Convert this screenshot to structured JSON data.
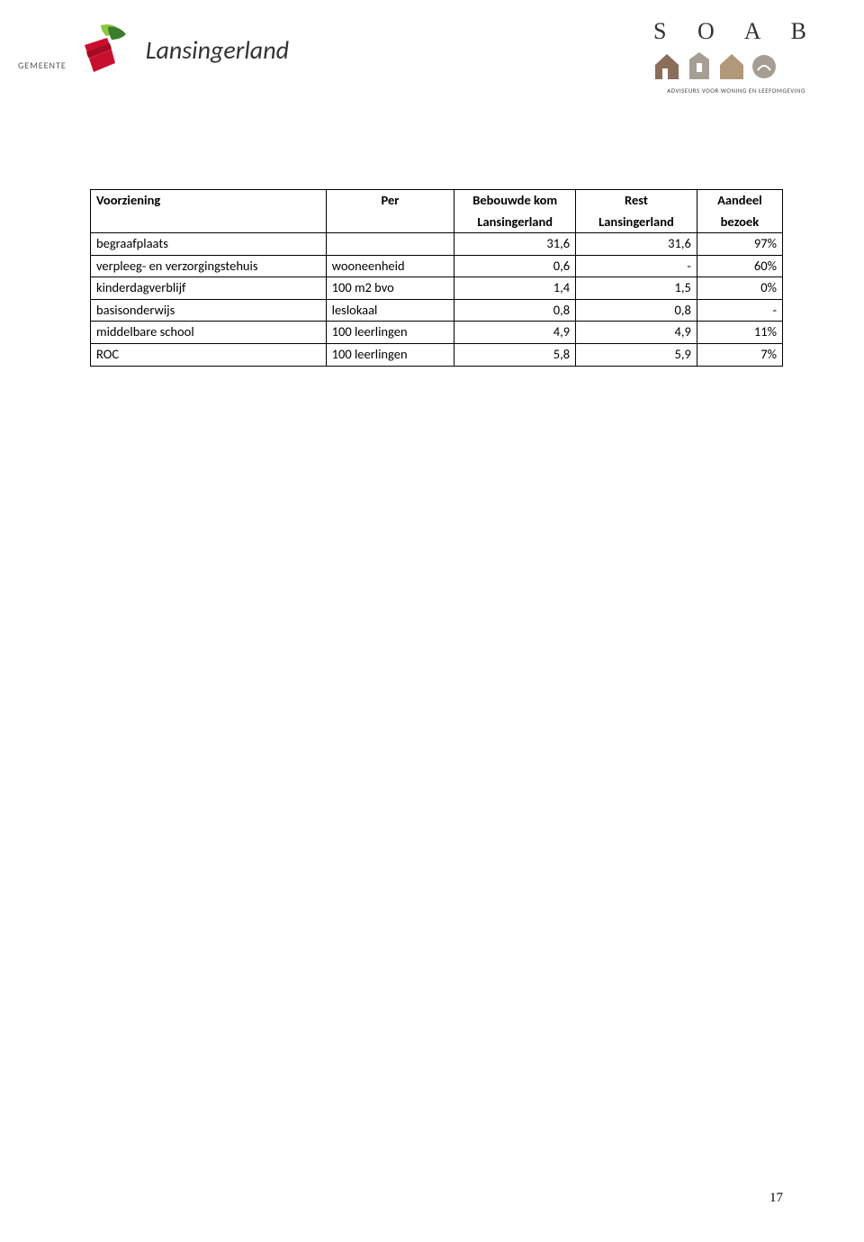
{
  "header": {
    "gemeente": "GEMEENTE",
    "lansingerland": "Lansingerland",
    "soab": "S O A B",
    "soab_tagline": "ADVISEURS VOOR WONING EN LEEFOMGEVING"
  },
  "table": {
    "columns": [
      {
        "label": "Voorziening",
        "sub": ""
      },
      {
        "label": "Per",
        "sub": ""
      },
      {
        "label": "Bebouwde kom",
        "sub": "Lansingerland"
      },
      {
        "label": "Rest",
        "sub": "Lansingerland"
      },
      {
        "label": "Aandeel",
        "sub": "bezoek"
      }
    ],
    "rows": [
      {
        "voorziening": "begraafplaats",
        "per": "",
        "kom": "31,6",
        "rest": "31,6",
        "aandeel": "97%"
      },
      {
        "voorziening": "verpleeg- en verzorgingstehuis",
        "per": "wooneenheid",
        "kom": "0,6",
        "rest": "-",
        "aandeel": "60%"
      },
      {
        "voorziening": "kinderdagverblijf",
        "per": "100 m2 bvo",
        "kom": "1,4",
        "rest": "1,5",
        "aandeel": "0%"
      },
      {
        "voorziening": "basisonderwijs",
        "per": "leslokaal",
        "kom": "0,8",
        "rest": "0,8",
        "aandeel": "-"
      },
      {
        "voorziening": "middelbare school",
        "per": "100 leerlingen",
        "kom": "4,9",
        "rest": "4,9",
        "aandeel": "11%"
      },
      {
        "voorziening": "ROC",
        "per": "100 leerlingen",
        "kom": "5,8",
        "rest": "5,9",
        "aandeel": "7%"
      }
    ]
  },
  "page_number": "17",
  "colors": {
    "logo_red": "#c8102e",
    "logo_green_dark": "#3a7d2c",
    "logo_green_light": "#8cc63f",
    "soab_brown": "#8a6d5a",
    "soab_gray": "#a49e94",
    "soab_tan": "#b09878"
  }
}
